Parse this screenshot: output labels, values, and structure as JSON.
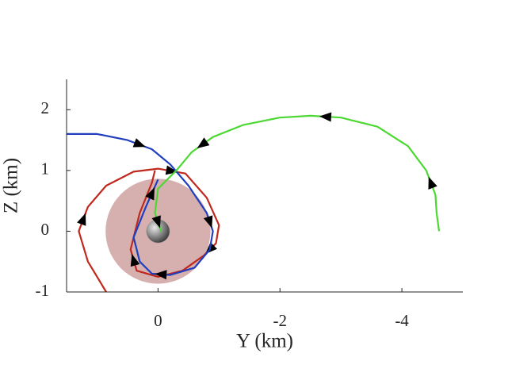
{
  "chart_data": {
    "type": "line",
    "x_label": "Y (km)",
    "y_label": "Z (km)",
    "xlim": [
      1.5,
      -5
    ],
    "ylim": [
      -1,
      2.5
    ],
    "xticks": [
      0,
      -2,
      -4
    ],
    "yticks": [
      -1,
      0,
      1,
      2
    ],
    "shapes": [
      {
        "kind": "disc",
        "x": 0,
        "y": 0,
        "r": 0.86,
        "color": "#d2a6a6"
      },
      {
        "kind": "sphere",
        "x": 0,
        "y": 0,
        "r": 0.19,
        "color": "#8a8a8a"
      }
    ],
    "series": [
      {
        "color": "#c0281e",
        "x": [
          0.85,
          1.15,
          1.3,
          1.15,
          0.85,
          0.4,
          0,
          -0.45,
          -0.8,
          -1.0,
          -0.95,
          -0.75,
          -0.4,
          0,
          0.35,
          0.45,
          0.3,
          0.1,
          0.05
        ],
        "values": [
          -1.0,
          -0.5,
          0,
          0.4,
          0.75,
          0.98,
          1.03,
          0.95,
          0.55,
          0.1,
          -0.2,
          -0.4,
          -0.65,
          -0.75,
          -0.65,
          -0.3,
          0.3,
          0.8,
          1.0
        ]
      },
      {
        "color": "#1f3fbf",
        "x": [
          1.5,
          1.0,
          0.5,
          0.1,
          -0.2,
          -0.5,
          -0.8,
          -0.9,
          -0.85,
          -0.6,
          -0.2,
          0.1,
          0.3,
          0.4,
          0.2,
          0
        ],
        "values": [
          1.6,
          1.6,
          1.5,
          1.35,
          1.1,
          0.75,
          0.3,
          0,
          -0.3,
          -0.6,
          -0.72,
          -0.7,
          -0.5,
          -0.1,
          0.4,
          0.85
        ]
      },
      {
        "color": "#4cd832",
        "x": [
          -4.61,
          -4.57,
          -4.55,
          -4.4,
          -4.1,
          -3.6,
          -3.0,
          -2.5,
          -2.0,
          -1.4,
          -0.9,
          -0.55,
          -0.3,
          0,
          0.05,
          -0.05
        ],
        "values": [
          0,
          0.3,
          0.6,
          1.0,
          1.4,
          1.72,
          1.87,
          1.9,
          1.87,
          1.75,
          1.55,
          1.3,
          1.0,
          0.7,
          0.3,
          0
        ]
      }
    ]
  }
}
